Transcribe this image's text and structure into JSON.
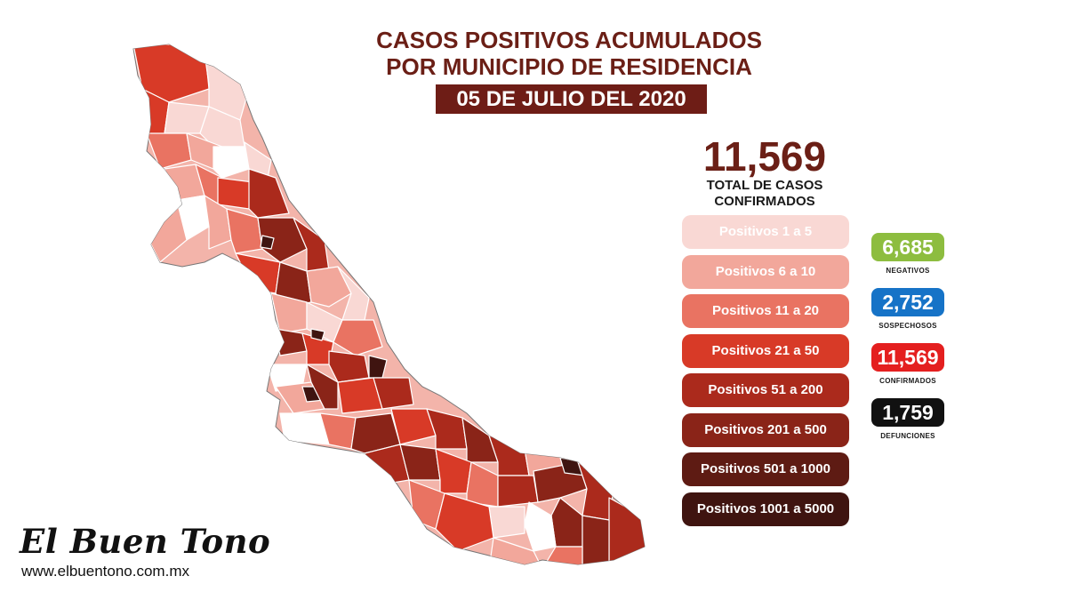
{
  "header": {
    "title_line1": "CASOS POSITIVOS ACUMULADOS",
    "title_line2": "POR MUNICIPIO DE RESIDENCIA",
    "date": "05 DE JULIO DEL 2020"
  },
  "summary": {
    "total": "11,569",
    "total_label_line1": "TOTAL DE CASOS",
    "total_label_line2": "CONFIRMADOS"
  },
  "legend": [
    {
      "label": "Positivos 1 a 5",
      "color": "#f9d8d4",
      "text_color": "#ffffff"
    },
    {
      "label": "Positivos 6 a 10",
      "color": "#f2a79b",
      "text_color": "#ffffff"
    },
    {
      "label": "Positivos 11 a 20",
      "color": "#e97362",
      "text_color": "#ffffff"
    },
    {
      "label": "Positivos 21 a 50",
      "color": "#d83a27",
      "text_color": "#ffffff"
    },
    {
      "label": "Positivos 51 a 200",
      "color": "#ab2a1c",
      "text_color": "#ffffff"
    },
    {
      "label": "Positivos 201 a 500",
      "color": "#8a2418",
      "text_color": "#ffffff"
    },
    {
      "label": "Positivos 501 a 1000",
      "color": "#5e1b13",
      "text_color": "#ffffff"
    },
    {
      "label": "Positivos 1001 a 5000",
      "color": "#3f1410",
      "text_color": "#ffffff"
    }
  ],
  "stats": [
    {
      "value": "6,685",
      "label": "NEGATIVOS",
      "color": "#8dbd3f"
    },
    {
      "value": "2,752",
      "label": "SOSPECHOSOS",
      "color": "#1673c7"
    },
    {
      "value": "11,569",
      "label": "CONFIRMADOS",
      "color": "#e41f1f"
    },
    {
      "value": "1,759",
      "label": "DEFUNCIONES",
      "color": "#111111"
    }
  ],
  "brand": {
    "name": "El Buen Tono",
    "url": "www.elbuentono.com.mx"
  }
}
